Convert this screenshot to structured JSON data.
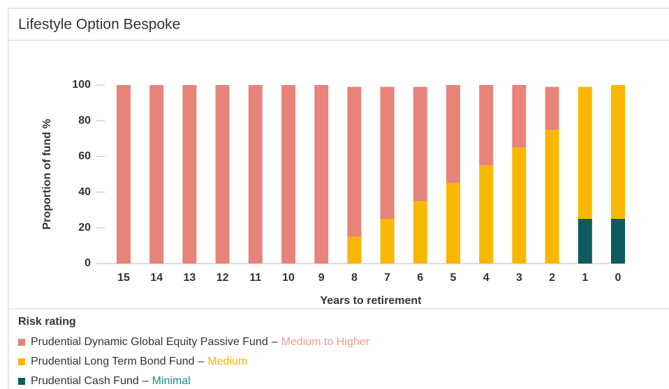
{
  "chart_data": {
    "type": "stacked_bar",
    "title": "Lifestyle Option Bespoke",
    "x_label": "Years to retirement",
    "y_label": "Proportion of fund %",
    "categories": [
      "15",
      "14",
      "13",
      "12",
      "11",
      "10",
      "9",
      "8",
      "7",
      "6",
      "5",
      "4",
      "3",
      "2",
      "1",
      "0"
    ],
    "series": [
      {
        "name": "Prudential Dynamic Global Equity Passive Fund",
        "risk": "Medium to Higher",
        "color": "#e8837a",
        "risk_color": "#f09a90",
        "values": [
          100,
          100,
          100,
          100,
          100,
          100,
          100,
          84,
          74,
          64,
          55,
          45,
          35,
          24,
          0,
          0
        ]
      },
      {
        "name": "Prudential Long Term Bond Fund",
        "risk": "Medium",
        "color": "#f8b800",
        "risk_color": "#f5b400",
        "values": [
          0,
          0,
          0,
          0,
          0,
          0,
          0,
          15,
          25,
          35,
          45,
          55,
          65,
          75,
          74,
          75
        ]
      },
      {
        "name": "Prudential Cash Fund",
        "risk": "Minimal",
        "color": "#0e5a5c",
        "risk_color": "#1a8a8a",
        "values": [
          0,
          0,
          0,
          0,
          0,
          0,
          0,
          0,
          0,
          0,
          0,
          0,
          0,
          0,
          25,
          25
        ]
      }
    ],
    "legend_title": "Risk rating",
    "legend_separator": "–",
    "ylim": [
      0,
      100
    ],
    "yticks": [
      0,
      20,
      40,
      60,
      80,
      100
    ],
    "grid": false
  }
}
